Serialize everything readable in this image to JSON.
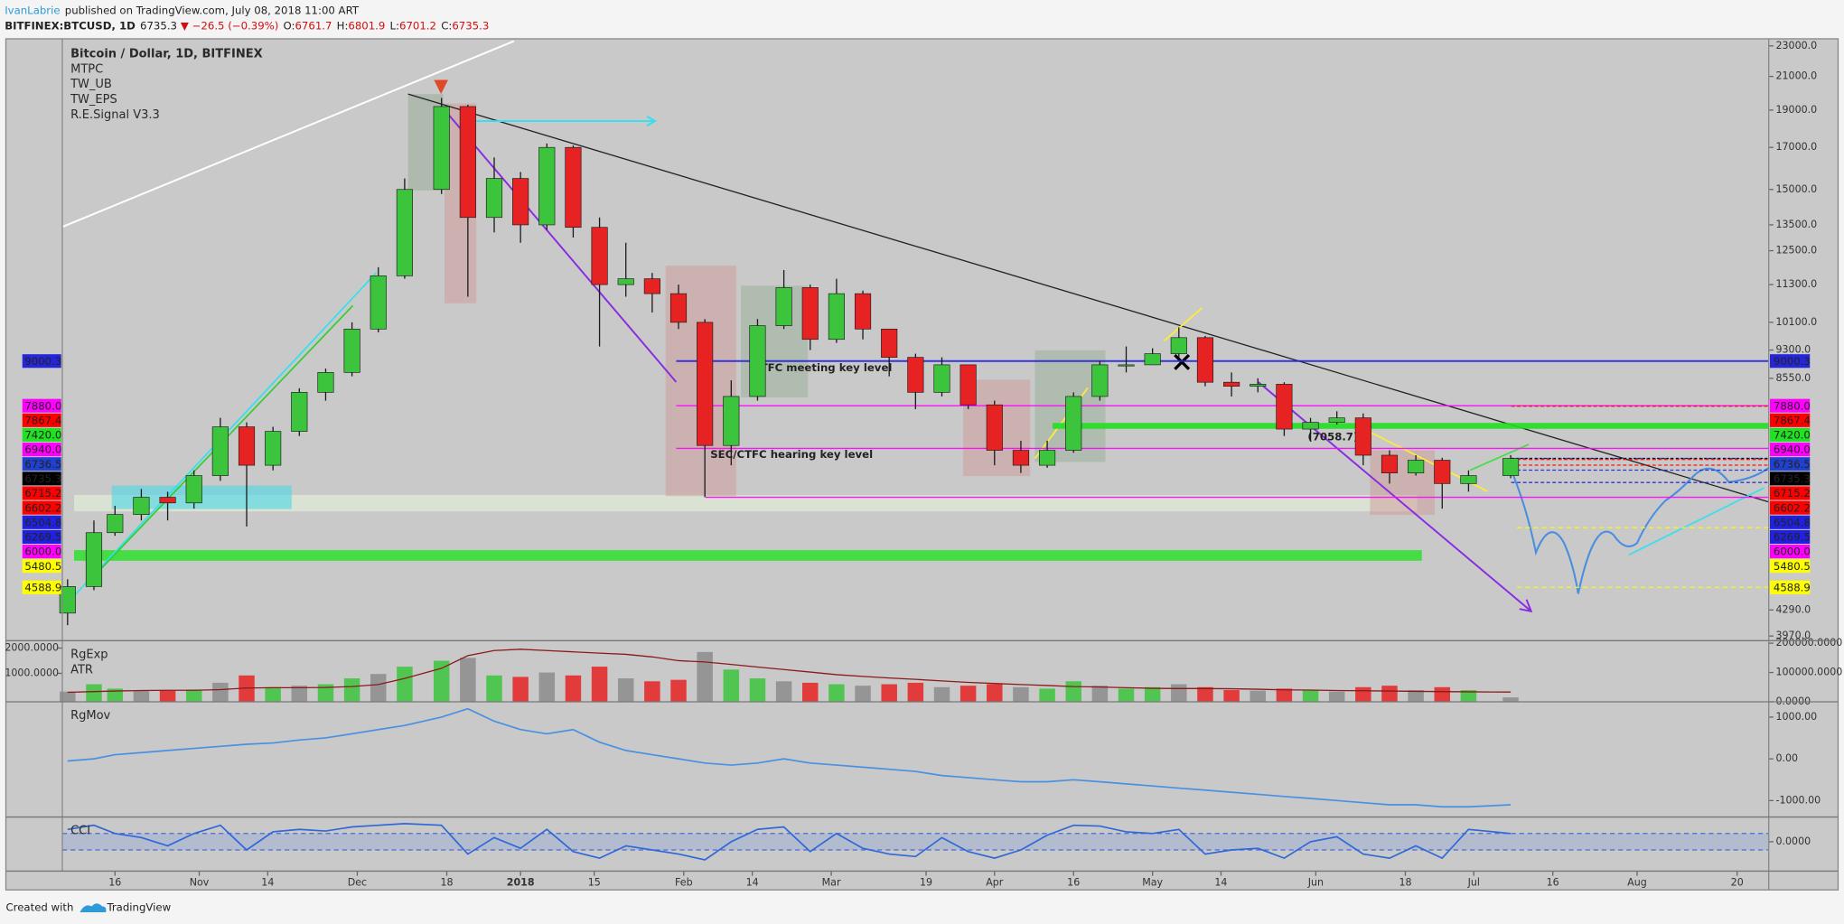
{
  "header": {
    "author": "IvanLabrie",
    "published": "published on TradingView.com, July 08, 2018 11:00 ART",
    "symbol": "BITFINEX:BTCUSD, 1D",
    "price": "6735.3",
    "change": "▼ −26.5 (−0.39%)",
    "ohlc": [
      {
        "label": "O:",
        "value": "6761.7"
      },
      {
        "label": "H:",
        "value": "6801.9"
      },
      {
        "label": "L:",
        "value": "6701.2"
      },
      {
        "label": "C:",
        "value": "6735.3"
      }
    ]
  },
  "chart_data": [
    {
      "type": "candlestick",
      "title": "Bitcoin / Dollar, 1D, BITFINEX",
      "indicators": [
        "MTPC",
        "TW_UB",
        "TW_EPS",
        "R.E.Signal V3.3"
      ],
      "x": [
        "2017-10-07",
        "2017-10-12",
        "2017-10-16",
        "2017-10-21",
        "2017-10-26",
        "2017-10-31",
        "2017-11-05",
        "2017-11-10",
        "2017-11-15",
        "2017-11-20",
        "2017-11-25",
        "2017-11-30",
        "2017-12-05",
        "2017-12-10",
        "2017-12-17",
        "2017-12-22",
        "2017-12-27",
        "2018-01-01",
        "2018-01-06",
        "2018-01-11",
        "2018-01-16",
        "2018-01-21",
        "2018-01-26",
        "2018-01-31",
        "2018-02-05",
        "2018-02-10",
        "2018-02-15",
        "2018-02-20",
        "2018-02-25",
        "2018-03-02",
        "2018-03-07",
        "2018-03-12",
        "2018-03-17",
        "2018-03-22",
        "2018-03-27",
        "2018-04-01",
        "2018-04-06",
        "2018-04-11",
        "2018-04-16",
        "2018-04-21",
        "2018-04-26",
        "2018-05-01",
        "2018-05-06",
        "2018-05-11",
        "2018-05-16",
        "2018-05-21",
        "2018-05-26",
        "2018-05-31",
        "2018-06-05",
        "2018-06-10",
        "2018-06-15",
        "2018-06-20",
        "2018-06-25",
        "2018-06-30",
        "2018-07-08"
      ],
      "open": [
        4250,
        4600,
        5400,
        5700,
        6000,
        5900,
        6400,
        7400,
        6600,
        7300,
        8200,
        8700,
        9900,
        11600,
        15000,
        19200,
        13800,
        15500,
        13500,
        17000,
        13400,
        11300,
        11500,
        11000,
        10100,
        7000,
        8100,
        10000,
        11200,
        9600,
        11000,
        9900,
        9100,
        8200,
        8900,
        7900,
        6900,
        6600,
        6900,
        8100,
        8900,
        8900,
        9200,
        9650,
        8450,
        8350,
        8400,
        7350,
        7500,
        7600,
        6800,
        6450,
        6700,
        6250,
        6400
      ],
      "high": [
        4700,
        5600,
        5850,
        6150,
        6100,
        6500,
        7600,
        7500,
        7400,
        8300,
        8800,
        10100,
        11900,
        15500,
        19700,
        19300,
        16500,
        15800,
        17200,
        17100,
        13800,
        12800,
        11700,
        11300,
        10200,
        8500,
        10200,
        11800,
        11300,
        11500,
        11100,
        9900,
        9200,
        9100,
        8900,
        8000,
        7100,
        7100,
        8200,
        9000,
        9400,
        9350,
        9950,
        9700,
        8700,
        8550,
        8450,
        7600,
        7750,
        7700,
        6900,
        6800,
        6750,
        6500,
        6801.9
      ],
      "low": [
        4100,
        4550,
        5350,
        5600,
        5600,
        5800,
        6300,
        5500,
        6500,
        7200,
        8000,
        8600,
        9800,
        11500,
        14800,
        10900,
        13200,
        12800,
        13300,
        13000,
        9400,
        10900,
        10400,
        9900,
        6000,
        6600,
        8000,
        9900,
        9300,
        9500,
        9600,
        8600,
        7800,
        8100,
        7800,
        6600,
        6450,
        6550,
        6850,
        8000,
        8700,
        8900,
        9100,
        8350,
        8100,
        8200,
        7200,
        7100,
        7450,
        6600,
        6250,
        6400,
        5800,
        6100,
        6350
      ],
      "close": [
        4600,
        5400,
        5700,
        6000,
        5900,
        6400,
        7400,
        6600,
        7300,
        8200,
        8700,
        9900,
        11600,
        15000,
        19200,
        13800,
        15500,
        13500,
        17000,
        13400,
        11300,
        11500,
        11000,
        10100,
        7000,
        8100,
        10000,
        11200,
        9600,
        11000,
        9900,
        9100,
        8200,
        8900,
        7900,
        6900,
        6600,
        6900,
        8100,
        8900,
        8900,
        9200,
        9650,
        8450,
        8350,
        8400,
        7350,
        7500,
        7600,
        6800,
        6450,
        6700,
        6250,
        6400,
        6735.3
      ],
      "up_color": "#3cc43c",
      "down_color": "#e62222",
      "log_scale": true,
      "xlim": [
        "2017-10-06",
        "2018-08-26"
      ],
      "ylim": [
        3915,
        23490
      ],
      "yticks": [
        {
          "value": 23000,
          "label": "23000.0"
        },
        {
          "value": 21000,
          "label": "21000.0"
        },
        {
          "value": 19000,
          "label": "19000.0"
        },
        {
          "value": 17000,
          "label": "17000.0"
        },
        {
          "value": 15000,
          "label": "15000.0"
        },
        {
          "value": 13500,
          "label": "13500.0"
        },
        {
          "value": 12500,
          "label": "12500.0"
        },
        {
          "value": 11300,
          "label": "11300.0"
        },
        {
          "value": 10100,
          "label": "10100.0"
        },
        {
          "value": 9300,
          "label": "9300.0"
        },
        {
          "value": 8550,
          "label": "8550.0"
        },
        {
          "value": 4290,
          "label": "4290.0"
        },
        {
          "value": 3970,
          "label": "3970.0"
        }
      ],
      "xticks": [
        {
          "value": "2017-10-16",
          "label": "16"
        },
        {
          "value": "2017-11-01",
          "label": "Nov"
        },
        {
          "value": "2017-11-14",
          "label": "14"
        },
        {
          "value": "2017-12-01",
          "label": "Dec"
        },
        {
          "value": "2017-12-18",
          "label": "18"
        },
        {
          "value": "2018-01-01",
          "label": "2018"
        },
        {
          "value": "2018-01-15",
          "label": "15"
        },
        {
          "value": "2018-02-01",
          "label": "Feb"
        },
        {
          "value": "2018-02-14",
          "label": "14"
        },
        {
          "value": "2018-03-01",
          "label": "Mar"
        },
        {
          "value": "2018-03-19",
          "label": "19"
        },
        {
          "value": "2018-04-01",
          "label": "Apr"
        },
        {
          "value": "2018-04-16",
          "label": "16"
        },
        {
          "value": "2018-05-01",
          "label": "May"
        },
        {
          "value": "2018-05-14",
          "label": "14"
        },
        {
          "value": "2018-06-01",
          "label": "Jun"
        },
        {
          "value": "2018-06-18",
          "label": "18"
        },
        {
          "value": "2018-07-01",
          "label": "Jul"
        },
        {
          "value": "2018-07-16",
          "label": "16"
        },
        {
          "value": "2018-08-01",
          "label": "Aug"
        },
        {
          "value": "2018-08-20",
          "label": "20"
        }
      ],
      "levels": [
        {
          "value": 9000.3,
          "color": "#2626d9"
        },
        {
          "value": 7880,
          "label": "7880.0",
          "color": "#ff00ff"
        },
        {
          "value": 7867.4,
          "color": "#ff0000"
        },
        {
          "value": 7420,
          "label": "7420.0",
          "color": "#22e022"
        },
        {
          "value": 6940,
          "label": "6940.0",
          "color": "#ff00ff"
        },
        {
          "value": 6736.5,
          "color": "#2040d0"
        },
        {
          "value": 6735.3,
          "color": "#000000"
        },
        {
          "value": 6715.2,
          "color": "#ff0000"
        },
        {
          "value": 6602.2,
          "color": "#ff0000"
        },
        {
          "value": 6504.8,
          "color": "#2020e0"
        },
        {
          "value": 6269.5,
          "color": "#2020e0"
        },
        {
          "value": 6000,
          "label": "6000.0",
          "color": "#ff00ff"
        },
        {
          "value": 5480.5,
          "color": "#ffff00"
        },
        {
          "value": 4588.9,
          "color": "#ffff00"
        }
      ],
      "annotations": [
        "CTFC meeting key level",
        "SEC/CTFC hearing key level",
        "(7058.7)"
      ]
    },
    {
      "type": "bar",
      "series": [
        {
          "name": "RgExp",
          "color": "#8c8c8c",
          "values": [
            35000,
            60000,
            45000,
            40000,
            38000,
            42000,
            65000,
            90000,
            50000,
            55000,
            60000,
            80000,
            95000,
            120000,
            140000,
            150000,
            90000,
            85000,
            100000,
            90000,
            120000,
            80000,
            70000,
            75000,
            170000,
            110000,
            80000,
            70000,
            65000,
            60000,
            55000,
            60000,
            65000,
            50000,
            55000,
            60000,
            50000,
            45000,
            70000,
            55000,
            45000,
            50000,
            60000,
            50000,
            40000,
            38000,
            45000,
            40000,
            35000,
            50000,
            55000,
            40000,
            50000,
            40000,
            15000
          ]
        },
        {
          "name": "ATR",
          "color": "#8b1a1a",
          "axis": "y2",
          "values": [
            250,
            280,
            300,
            320,
            330,
            330,
            360,
            420,
            430,
            430,
            440,
            480,
            560,
            800,
            1200,
            1700,
            1900,
            1950,
            1900,
            1850,
            1800,
            1750,
            1650,
            1500,
            1450,
            1350,
            1250,
            1150,
            1050,
            950,
            880,
            820,
            760,
            700,
            640,
            600,
            560,
            520,
            480,
            460,
            430,
            410,
            400,
            400,
            390,
            370,
            350,
            340,
            320,
            310,
            300,
            290,
            280,
            270,
            260
          ]
        }
      ],
      "ylim": [
        0,
        208500
      ],
      "yticks": [
        {
          "value": 200000,
          "label": "200000.0000"
        },
        {
          "value": 100000,
          "label": "100000.0000"
        },
        {
          "value": 0,
          "label": "0.0000"
        }
      ],
      "y2lim": [
        -125,
        2290
      ],
      "y2ticks": [
        {
          "value": 2000,
          "label": "2000.0000"
        },
        {
          "value": 1000,
          "label": "1000.0000"
        }
      ]
    },
    {
      "type": "line",
      "series": [
        {
          "name": "RgMov",
          "color": "#4a90e2",
          "values": [
            -50,
            0,
            100,
            150,
            200,
            250,
            300,
            350,
            380,
            450,
            500,
            600,
            700,
            800,
            1000,
            1200,
            900,
            700,
            600,
            700,
            400,
            200,
            100,
            0,
            -100,
            -150,
            -100,
            0,
            -100,
            -150,
            -200,
            -250,
            -300,
            -400,
            -450,
            -500,
            -550,
            -550,
            -500,
            -550,
            -600,
            -650,
            -700,
            -750,
            -800,
            -850,
            -900,
            -950,
            -1000,
            -1050,
            -1100,
            -1100,
            -1150,
            -1150,
            -1100
          ]
        }
      ],
      "ylim": [
        -1394,
        1366
      ],
      "yticks": [
        {
          "value": 1000,
          "label": "1000.00"
        },
        {
          "value": 0,
          "label": "0.00"
        },
        {
          "value": -1000,
          "label": "-1000.00"
        }
      ]
    },
    {
      "type": "line",
      "series": [
        {
          "name": "CCI",
          "color": "#2f68d8",
          "values": [
            150,
            200,
            100,
            50,
            -50,
            100,
            200,
            -100,
            120,
            150,
            130,
            180,
            200,
            220,
            200,
            -150,
            50,
            -80,
            150,
            -120,
            -200,
            -50,
            -100,
            -150,
            -220,
            0,
            150,
            180,
            -120,
            100,
            -80,
            -150,
            -180,
            50,
            -120,
            -200,
            -100,
            80,
            200,
            190,
            120,
            100,
            150,
            -150,
            -100,
            -80,
            -200,
            0,
            60,
            -150,
            -200,
            -50,
            -200,
            150,
            100
          ]
        }
      ],
      "ylim": [
        -357,
        300
      ],
      "yticks": [
        {
          "value": 0,
          "label": "0.0000"
        }
      ],
      "band": [
        -100,
        100
      ]
    }
  ],
  "footer": {
    "created": "Created with",
    "brand": "TradingView"
  }
}
